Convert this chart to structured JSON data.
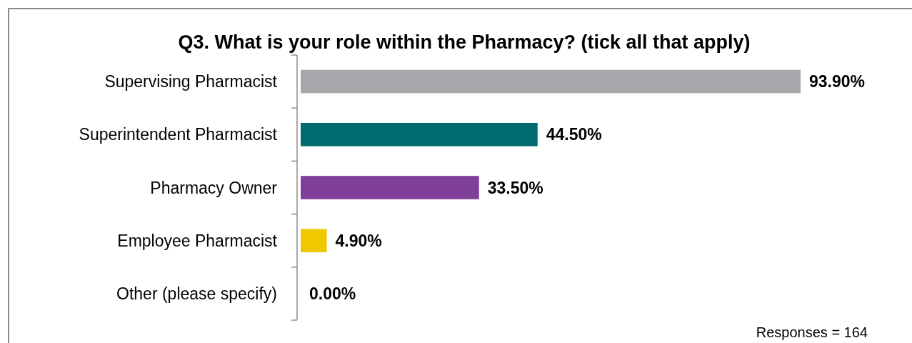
{
  "chart_data": {
    "type": "bar",
    "orientation": "horizontal",
    "title": "Q3. What is your role within the Pharmacy? (tick all that apply)",
    "categories": [
      "Supervising Pharmacist",
      "Superintendent Pharmacist",
      "Pharmacy Owner",
      "Employee Pharmacist",
      "Other (please specify)"
    ],
    "values": [
      93.9,
      44.5,
      33.5,
      4.9,
      0
    ],
    "colors": [
      "#a7a8ac",
      "#006b6f",
      "#7f3f98",
      "#f0c800",
      null
    ],
    "value_labels": [
      "93.90%",
      "44.50%",
      "33.50%",
      "4.90%",
      "0.00%"
    ],
    "annotations": [
      "Responses = 164"
    ]
  }
}
